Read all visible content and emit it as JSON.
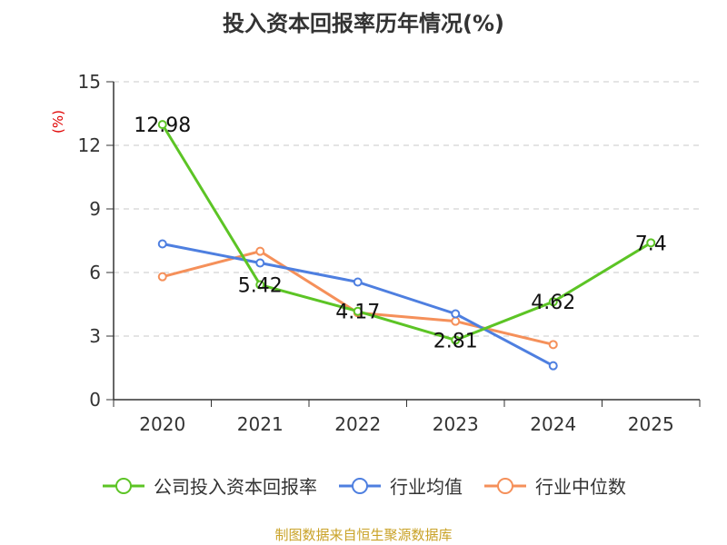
{
  "chart_data": {
    "type": "line",
    "title": "投入资本回报率历年情况(%)",
    "ylabel": "(%)",
    "xlabel": "",
    "ylim": [
      0,
      15
    ],
    "yticks": [
      0,
      3,
      6,
      9,
      12,
      15
    ],
    "categories": [
      "2020",
      "2021",
      "2022",
      "2023",
      "2024",
      "2025"
    ],
    "series": [
      {
        "name": "公司投入资本回报率",
        "color": "#5cc425",
        "values": [
          12.98,
          5.42,
          4.17,
          2.81,
          4.62,
          7.4
        ],
        "labels": [
          "12.98",
          "5.42",
          "4.17",
          "2.81",
          "4.62",
          "7.4"
        ]
      },
      {
        "name": "行业均值",
        "color": "#4e7fe0",
        "values": [
          7.35,
          6.45,
          5.55,
          4.05,
          1.6,
          null
        ]
      },
      {
        "name": "行业中位数",
        "color": "#f5905a",
        "values": [
          5.8,
          7.0,
          4.1,
          3.7,
          2.6,
          null
        ]
      }
    ],
    "grid": true,
    "legend": "bottom"
  },
  "source": "制图数据来自恒生聚源数据库"
}
